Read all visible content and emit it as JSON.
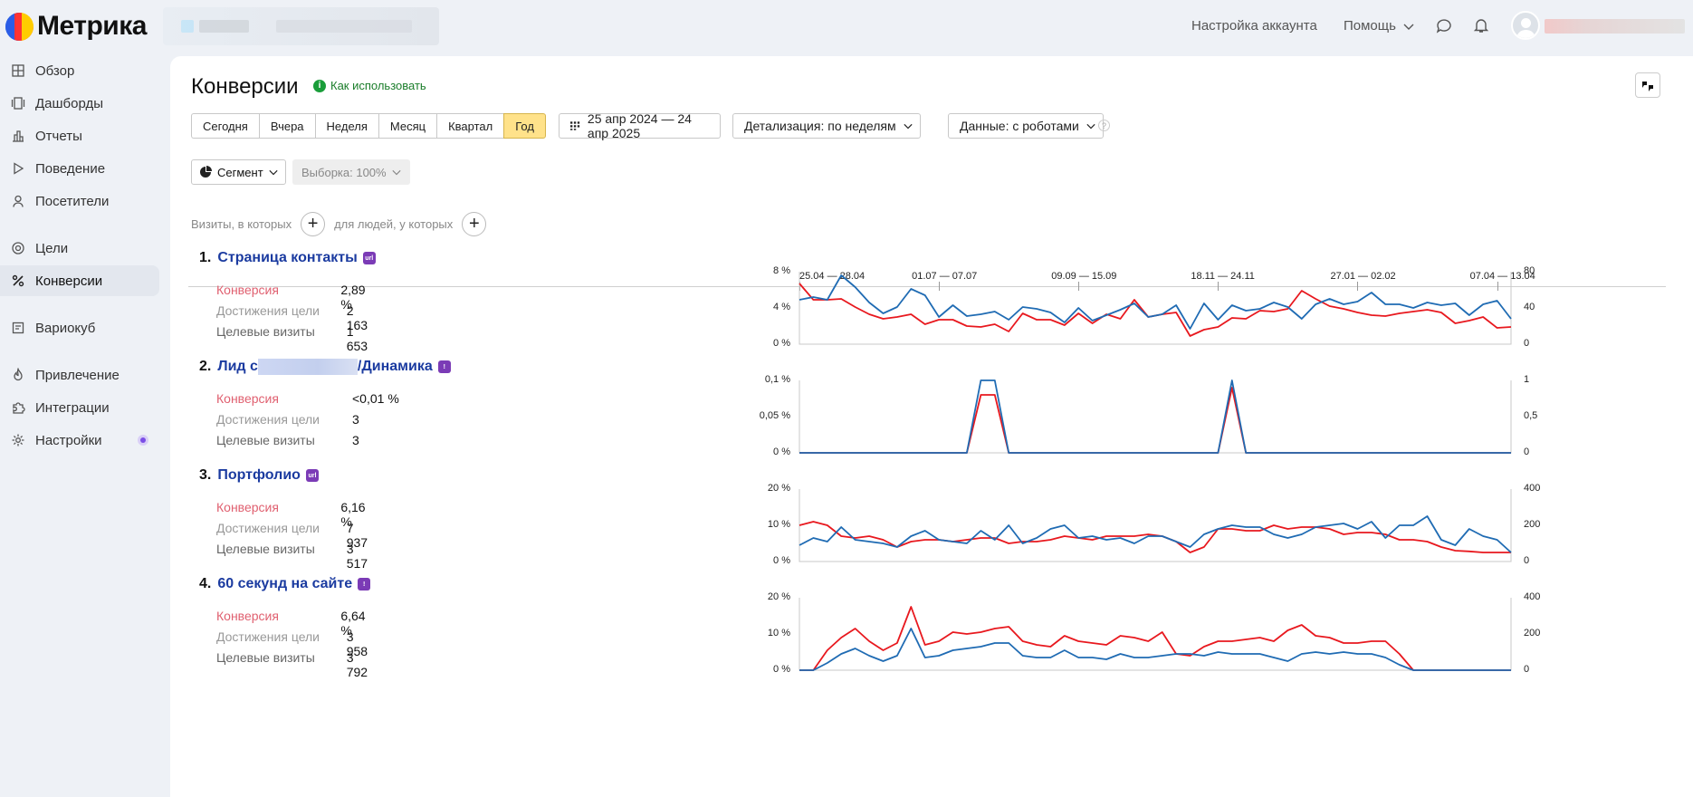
{
  "header": {
    "logo_text": "Метрика",
    "account_settings": "Настройка аккаунта",
    "help": "Помощь"
  },
  "sidebar": {
    "items": [
      {
        "label": "Обзор",
        "icon": "grid-icon"
      },
      {
        "label": "Дашборды",
        "icon": "dashboards-icon"
      },
      {
        "label": "Отчеты",
        "icon": "reports-icon"
      },
      {
        "label": "Поведение",
        "icon": "play-icon"
      },
      {
        "label": "Посетители",
        "icon": "person-icon"
      },
      {
        "label": "Цели",
        "icon": "target-icon"
      },
      {
        "label": "Конверсии",
        "icon": "percent-icon",
        "active": true
      },
      {
        "label": "Вариокуб",
        "icon": "variocube-icon"
      },
      {
        "label": "Привлечение",
        "icon": "flame-icon"
      },
      {
        "label": "Интеграции",
        "icon": "puzzle-icon"
      },
      {
        "label": "Настройки",
        "icon": "gear-icon"
      }
    ]
  },
  "page": {
    "title": "Конверсии",
    "howto": "Как использовать",
    "periods": [
      "Сегодня",
      "Вчера",
      "Неделя",
      "Месяц",
      "Квартал",
      "Год"
    ],
    "selected_period": "Год",
    "date_range": "25 апр 2024 — 24 апр 2025",
    "detail": "Детализация: по неделям",
    "data_mode": "Данные: с роботами",
    "segment": "Сегмент",
    "sample": "Выборка: 100%",
    "filter_visits": "Визиты, в которых",
    "filter_people": "для людей, у которых"
  },
  "timeline": {
    "labels": [
      "25.04 — 28.04",
      "01.07 — 07.07",
      "09.09 — 15.09",
      "18.11 — 24.11",
      "27.01 — 02.02",
      "07.04 — 13.04"
    ]
  },
  "stat_labels": {
    "conversion": "Конверсия",
    "achievements": "Достижения цели",
    "visits": "Целевые визиты"
  },
  "colors": {
    "conversion": "#e8181e",
    "visits": "#1f6bb3",
    "link": "#1b3ba0",
    "selected_period": "#ffe28a"
  },
  "goals": [
    {
      "num": "1.",
      "title": "Страница контакты",
      "title_suffix": "",
      "badge": "url",
      "conversion": "2,89 %",
      "achievements": "2 163",
      "visits": "1 653",
      "y_left": [
        "8 %",
        "4 %",
        "0 %"
      ],
      "y_right": [
        "80",
        "40",
        "0"
      ],
      "chart_data": {
        "type": "line",
        "ylim_left": [
          0,
          8
        ],
        "ylim_right": [
          0,
          80
        ],
        "series": [
          {
            "axis": "left",
            "values": [
              6.7,
              4.9,
              4.9,
              5.0,
              4.1,
              3.3,
              2.8,
              3.0,
              3.3,
              2.2,
              2.7,
              2.7,
              2.0,
              1.9,
              2.2,
              1.4,
              3.4,
              2.7,
              2.7,
              2.1,
              3.4,
              2.3,
              3.3,
              2.8,
              4.9,
              3.0,
              3.3,
              3.5,
              0.9,
              1.6,
              1.9,
              2.9,
              2.8,
              3.7,
              3.6,
              3.9,
              5.9,
              5.0,
              4.2,
              3.9,
              3.5,
              3.2,
              3.1,
              3.4,
              3.6,
              3.8,
              3.5,
              2.3,
              2.6,
              3.0,
              1.8,
              1.9
            ]
          },
          {
            "axis": "right",
            "values": [
              49,
              52,
              49,
              76,
              63,
              46,
              34,
              41,
              61,
              54,
              30,
              43,
              31,
              33,
              36,
              27,
              41,
              39,
              35,
              24,
              40,
              26,
              32,
              38,
              45,
              30,
              33,
              43,
              17,
              45,
              27,
              43,
              37,
              39,
              46,
              41,
              28,
              44,
              50,
              44,
              47,
              57,
              44,
              44,
              40,
              46,
              43,
              45,
              32,
              44,
              48,
              28
            ]
          }
        ]
      }
    },
    {
      "num": "2.",
      "title": "Лид с",
      "title_suffix": "/Динамика",
      "badge": "!",
      "conversion": "<0,01 %",
      "achievements": "3",
      "visits": "3",
      "y_left": [
        "0,1 %",
        "0,05 %",
        "0 %"
      ],
      "y_right": [
        "1",
        "0,5",
        "0"
      ],
      "chart_data": {
        "type": "line",
        "ylim_left": [
          0,
          0.1
        ],
        "ylim_right": [
          0,
          1
        ],
        "series": [
          {
            "axis": "left",
            "values": [
              0,
              0,
              0,
              0,
              0,
              0,
              0,
              0,
              0,
              0,
              0,
              0,
              0,
              0.08,
              0.08,
              0,
              0,
              0,
              0,
              0,
              0,
              0,
              0,
              0,
              0,
              0,
              0,
              0,
              0,
              0,
              0,
              0.09,
              0,
              0,
              0,
              0,
              0,
              0,
              0,
              0,
              0,
              0,
              0,
              0,
              0,
              0,
              0,
              0,
              0,
              0,
              0,
              0
            ]
          },
          {
            "axis": "right",
            "values": [
              0,
              0,
              0,
              0,
              0,
              0,
              0,
              0,
              0,
              0,
              0,
              0,
              0,
              1,
              1,
              0,
              0,
              0,
              0,
              0,
              0,
              0,
              0,
              0,
              0,
              0,
              0,
              0,
              0,
              0,
              0,
              1,
              0,
              0,
              0,
              0,
              0,
              0,
              0,
              0,
              0,
              0,
              0,
              0,
              0,
              0,
              0,
              0,
              0,
              0,
              0,
              0
            ]
          }
        ]
      }
    },
    {
      "num": "3.",
      "title": "Портфолио",
      "title_suffix": "",
      "badge": "url",
      "conversion": "6,16 %",
      "achievements": "7 937",
      "visits": "3 517",
      "y_left": [
        "20 %",
        "10 %",
        "0 %"
      ],
      "y_right": [
        "400",
        "200",
        "0"
      ],
      "chart_data": {
        "type": "line",
        "ylim_left": [
          0,
          20
        ],
        "ylim_right": [
          0,
          400
        ],
        "series": [
          {
            "axis": "left",
            "values": [
              10,
              11,
              10,
              7,
              6.5,
              7,
              6,
              4,
              5.5,
              6,
              6,
              5.5,
              6,
              6.5,
              6.5,
              5,
              5.5,
              5.5,
              6,
              7,
              6.5,
              6,
              7,
              7,
              7,
              7.5,
              7,
              5.5,
              2.5,
              4,
              9,
              9,
              8.5,
              8.5,
              10,
              9,
              9.5,
              9.5,
              9,
              7.5,
              8,
              8,
              7.5,
              6,
              6,
              5.5,
              4,
              3,
              2.8,
              2.5,
              2.5,
              2.5
            ]
          },
          {
            "axis": "right",
            "values": [
              90,
              130,
              110,
              190,
              120,
              110,
              100,
              80,
              140,
              170,
              120,
              110,
              100,
              170,
              120,
              200,
              100,
              130,
              180,
              200,
              130,
              140,
              120,
              130,
              100,
              140,
              140,
              110,
              80,
              150,
              180,
              200,
              190,
              190,
              150,
              130,
              150,
              190,
              200,
              210,
              180,
              220,
              130,
              200,
              200,
              250,
              120,
              90,
              180,
              140,
              120,
              50
            ]
          }
        ]
      }
    },
    {
      "num": "4.",
      "title": "60 секунд на сайте",
      "title_suffix": "",
      "badge": "!",
      "conversion": "6,64 %",
      "achievements": "3 958",
      "visits": "3 792",
      "y_left": [
        "20 %",
        "10 %",
        "0 %"
      ],
      "y_right": [
        "400",
        "200",
        "0"
      ],
      "chart_data": {
        "type": "line",
        "ylim_left": [
          0,
          20
        ],
        "ylim_right": [
          0,
          400
        ],
        "series": [
          {
            "axis": "left",
            "values": [
              0,
              0,
              5.5,
              9,
              11.5,
              8,
              5.5,
              7.5,
              17.5,
              7,
              8,
              10.5,
              10,
              10.5,
              11.5,
              12,
              8,
              7,
              6.5,
              9.5,
              8,
              7.5,
              7,
              9.5,
              9,
              8,
              10.5,
              4.5,
              4,
              6.5,
              8,
              8,
              8.5,
              9,
              8,
              11,
              12.5,
              9.5,
              9,
              7.5,
              7.5,
              8,
              8,
              4.5,
              0,
              0,
              0,
              0,
              0,
              0,
              0,
              0
            ]
          },
          {
            "axis": "right",
            "values": [
              0,
              0,
              40,
              90,
              120,
              80,
              50,
              80,
              230,
              70,
              80,
              110,
              120,
              130,
              150,
              150,
              80,
              70,
              70,
              110,
              70,
              70,
              60,
              90,
              70,
              70,
              80,
              90,
              90,
              80,
              100,
              90,
              90,
              90,
              70,
              50,
              90,
              100,
              90,
              100,
              90,
              90,
              70,
              30,
              0,
              0,
              0,
              0,
              0,
              0,
              0,
              0
            ]
          }
        ]
      }
    }
  ]
}
